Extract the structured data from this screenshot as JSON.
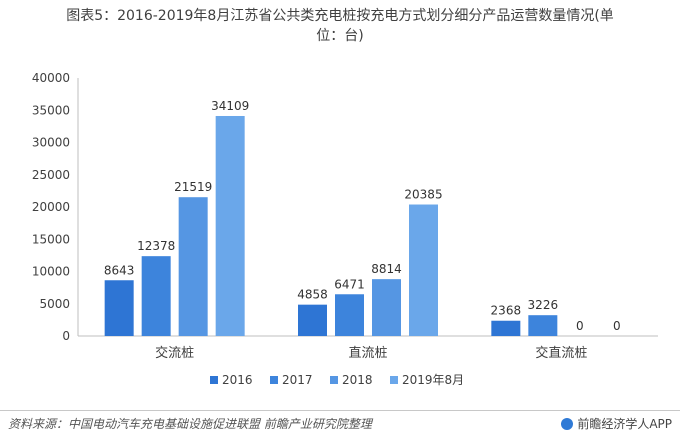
{
  "title": {
    "line1": "图表5：2016-2019年8月江苏省公共类充电桩按充电方式划分细分产品运营数量情况(单",
    "line2": "位：台)"
  },
  "chart_data": {
    "type": "bar",
    "categories": [
      "交流桩",
      "直流桩",
      "交直流桩"
    ],
    "series": [
      {
        "name": "2016",
        "values": [
          8643,
          4858,
          2368
        ],
        "color": "#2e75d4"
      },
      {
        "name": "2017",
        "values": [
          12378,
          6471,
          3226
        ],
        "color": "#3d84dc"
      },
      {
        "name": "2018",
        "values": [
          21519,
          8814,
          0
        ],
        "color": "#5596e3"
      },
      {
        "name": "2019年8月",
        "values": [
          34109,
          20385,
          0
        ],
        "color": "#6aa7ea"
      }
    ],
    "ylim": [
      0,
      40000
    ],
    "yticks": [
      0,
      5000,
      10000,
      15000,
      20000,
      25000,
      30000,
      35000,
      40000
    ],
    "grid": false,
    "legend_position": "bottom"
  },
  "footer": {
    "source": "资料来源：中国电动汽车充电基础设施促进联盟 前瞻产业研究院整理",
    "brand": "前瞻经济学人APP"
  }
}
